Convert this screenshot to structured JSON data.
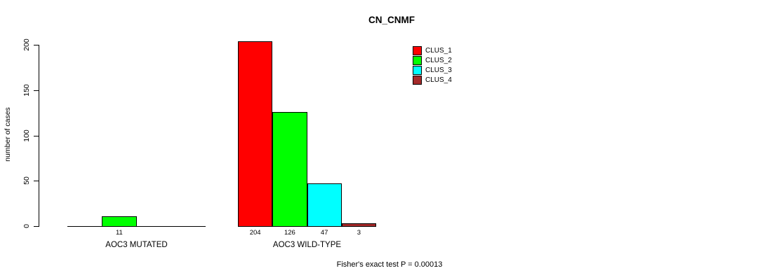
{
  "chart_data": {
    "type": "bar",
    "title": "CN_CNMF",
    "ylabel": "number of cases",
    "xlabel": "",
    "ylim": [
      0,
      200
    ],
    "yticks": [
      0,
      50,
      100,
      150,
      200
    ],
    "grid": false,
    "legend_position": "top-right",
    "legend": [
      {
        "label": "CLUS_1",
        "color": "#FF0000"
      },
      {
        "label": "CLUS_2",
        "color": "#00FF00"
      },
      {
        "label": "CLUS_3",
        "color": "#00FFFF"
      },
      {
        "label": "CLUS_4",
        "color": "#A52A2A"
      }
    ],
    "groups": [
      {
        "label": "AOC3 MUTATED",
        "bars": [
          {
            "cluster": "CLUS_2",
            "value": 11
          }
        ]
      },
      {
        "label": "AOC3 WILD-TYPE",
        "bars": [
          {
            "cluster": "CLUS_1",
            "value": 204
          },
          {
            "cluster": "CLUS_2",
            "value": 126
          },
          {
            "cluster": "CLUS_3",
            "value": 47
          },
          {
            "cluster": "CLUS_4",
            "value": 3
          }
        ]
      }
    ],
    "annotation": "Fisher's exact test P = 0.00013"
  }
}
